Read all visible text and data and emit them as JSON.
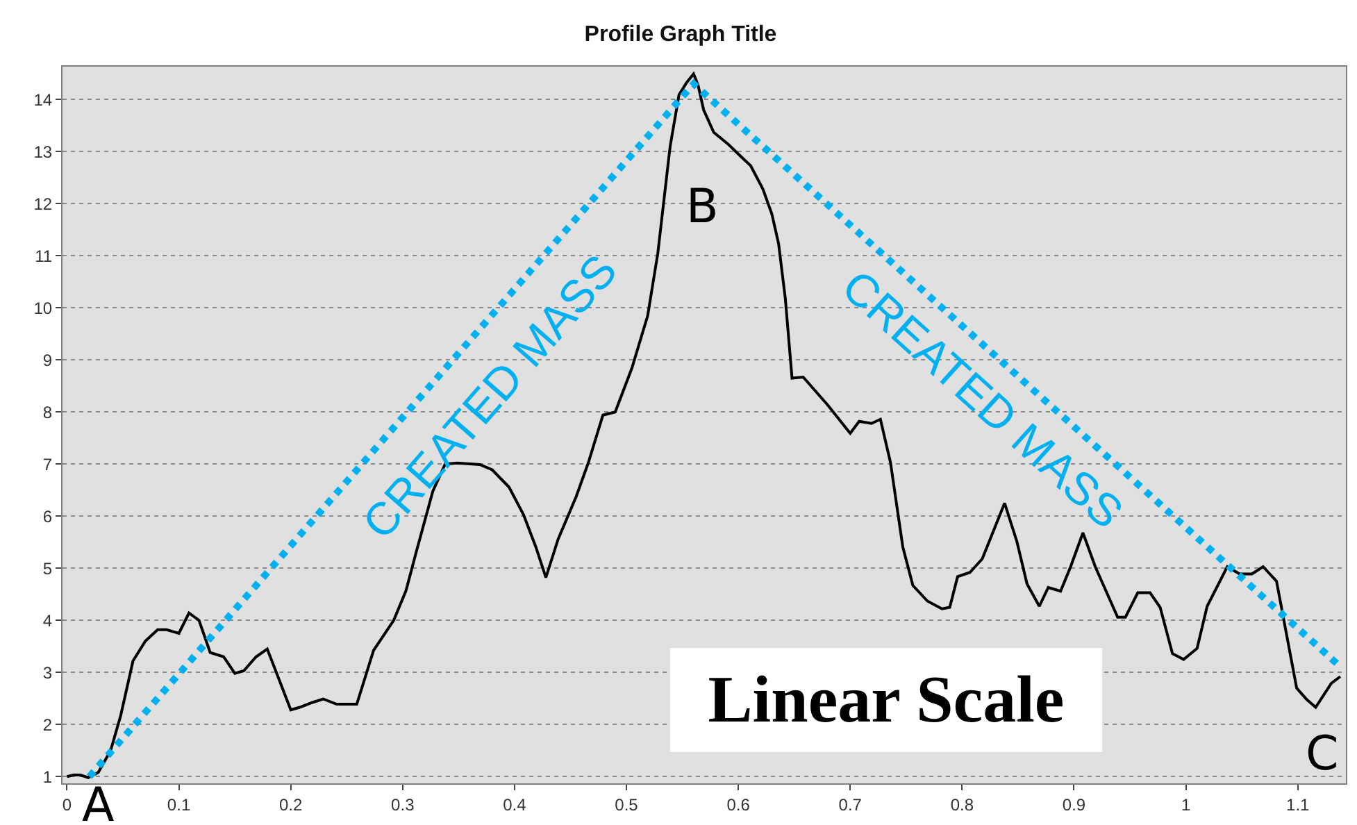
{
  "chart_data": {
    "type": "line",
    "title": "Profile Graph Title",
    "annotations": [
      "CREATED MASS",
      "CREATED MASS",
      "A",
      "B",
      "C",
      "Linear Scale"
    ],
    "series": [
      {
        "color": "#000000",
        "line_style": "solid",
        "x": [
          0.0,
          0.006,
          0.012,
          0.019,
          0.028,
          0.039,
          0.048,
          0.059,
          0.07,
          0.081,
          0.089,
          0.1,
          0.109,
          0.118,
          0.128,
          0.14,
          0.15,
          0.158,
          0.169,
          0.179,
          0.188,
          0.2,
          0.208,
          0.219,
          0.229,
          0.241,
          0.259,
          0.274,
          0.292,
          0.303,
          0.312,
          0.327,
          0.338,
          0.349,
          0.369,
          0.38,
          0.395,
          0.408,
          0.419,
          0.428,
          0.439,
          0.455,
          0.466,
          0.479,
          0.49,
          0.505,
          0.519,
          0.528,
          0.539,
          0.547,
          0.554,
          0.56,
          0.564,
          0.569,
          0.578,
          0.591,
          0.605,
          0.611,
          0.622,
          0.63,
          0.636,
          0.642,
          0.648,
          0.658,
          0.68,
          0.7,
          0.708,
          0.719,
          0.727,
          0.736,
          0.747,
          0.756,
          0.769,
          0.782,
          0.789,
          0.796,
          0.807,
          0.818,
          0.838,
          0.849,
          0.858,
          0.869,
          0.877,
          0.888,
          0.897,
          0.908,
          0.919,
          0.939,
          0.946,
          0.957,
          0.968,
          0.977,
          0.988,
          0.998,
          1.01,
          1.019,
          1.037,
          1.048,
          1.059,
          1.069,
          1.081,
          1.099,
          1.108,
          1.116,
          1.13,
          1.138
        ],
        "values": [
          1.0,
          1.03,
          1.03,
          0.98,
          1.08,
          1.5,
          2.17,
          3.22,
          3.6,
          3.82,
          3.82,
          3.75,
          4.14,
          4.0,
          3.38,
          3.3,
          2.98,
          3.03,
          3.3,
          3.45,
          2.95,
          2.28,
          2.33,
          2.42,
          2.49,
          2.39,
          2.39,
          3.42,
          4.0,
          4.57,
          5.3,
          6.48,
          7.0,
          7.02,
          6.99,
          6.89,
          6.56,
          6.03,
          5.41,
          4.82,
          5.56,
          6.37,
          7.03,
          7.94,
          8.0,
          8.85,
          9.85,
          11.04,
          13.09,
          14.09,
          14.33,
          14.49,
          14.28,
          13.8,
          13.37,
          13.14,
          12.85,
          12.73,
          12.28,
          11.8,
          11.23,
          10.18,
          8.65,
          8.67,
          8.13,
          7.59,
          7.82,
          7.78,
          7.86,
          7.03,
          5.41,
          4.67,
          4.37,
          4.22,
          4.25,
          4.84,
          4.92,
          5.18,
          6.25,
          5.51,
          4.7,
          4.27,
          4.63,
          4.56,
          5.03,
          5.68,
          5.03,
          4.06,
          4.06,
          4.53,
          4.53,
          4.25,
          3.36,
          3.25,
          3.46,
          4.27,
          5.03,
          4.89,
          4.89,
          5.03,
          4.75,
          2.7,
          2.48,
          2.33,
          2.79,
          2.92
        ]
      },
      {
        "color": "#00b0f0",
        "line_style": "dotted",
        "x": [
          0.02,
          0.56,
          1.136
        ],
        "values": [
          1.0,
          14.3,
          3.15
        ]
      }
    ],
    "xlim": [
      -0.004,
      1.143
    ],
    "ylim": [
      0.87,
      14.63
    ],
    "xticks": [
      0,
      0.1,
      0.2,
      0.3,
      0.4,
      0.5,
      0.6,
      0.7,
      0.8,
      0.9,
      1,
      1.1
    ],
    "yticks": [
      1,
      2,
      3,
      4,
      5,
      6,
      7,
      8,
      9,
      10,
      11,
      12,
      13,
      14
    ],
    "grid": "y",
    "marker": "none"
  }
}
